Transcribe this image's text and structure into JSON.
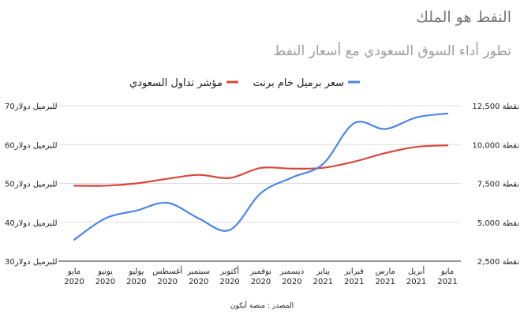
{
  "title": "النفط هو الملك",
  "subtitle": "تطور أداء السوق السعودي مع أسعار النفط",
  "source": "المصدر : منصة أيكون",
  "chart_data": {
    "type": "line",
    "categories": [
      [
        "مايو",
        "2020"
      ],
      [
        "يونيو",
        "2020"
      ],
      [
        "يوليو",
        "2020"
      ],
      [
        "أغسطس",
        "2020"
      ],
      [
        "سبتمبر",
        "2020"
      ],
      [
        "أكتوبر",
        "2020"
      ],
      [
        "نوفمبر",
        "2020"
      ],
      [
        "ديسمبر",
        "2020"
      ],
      [
        "يناير",
        "2021"
      ],
      [
        "فبراير",
        "2021"
      ],
      [
        "مارس",
        "2021"
      ],
      [
        "أبريل",
        "2021"
      ],
      [
        "مايو",
        "2021"
      ]
    ],
    "series": [
      {
        "name": "سعر برميل خام برنت",
        "axis": "left",
        "color": "#4a86e8",
        "values": [
          35.5,
          41,
          43,
          45,
          41,
          38,
          47.5,
          51.5,
          55,
          65.5,
          64,
          67,
          68
        ]
      },
      {
        "name": "مؤشر تداول السعودي",
        "axis": "right",
        "color": "#d9463b",
        "values": [
          7350,
          7350,
          7500,
          7800,
          8050,
          7850,
          8500,
          8450,
          8500,
          8900,
          9450,
          9850,
          9950
        ]
      }
    ],
    "left_axis": {
      "ticks": [
        30,
        40,
        50,
        60,
        70
      ],
      "tick_labels": [
        "للبرميل دولار30",
        "للبرميل دولار40",
        "للبرميل دولار50",
        "للبرميل دولار60",
        "للبرميل دولار70"
      ]
    },
    "right_axis": {
      "ticks": [
        2500,
        5000,
        7500,
        10000,
        12500
      ],
      "tick_labels": [
        "2,500 نقطة",
        "5,000 نقطة",
        "7,500 نقطة",
        "10,000 نقطة",
        "12,500 نقطة"
      ]
    },
    "grid": true,
    "legend_position": "top-center"
  }
}
